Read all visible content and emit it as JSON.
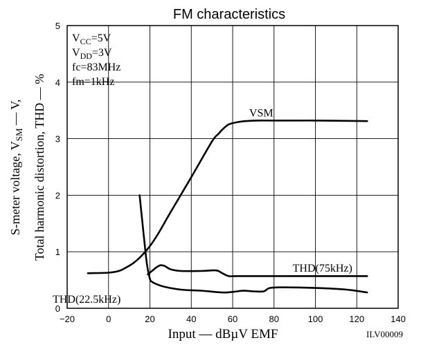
{
  "chart_data": {
    "type": "line",
    "title": "FM characteristics",
    "xlabel": "Input — dBµV EMF",
    "ylabel_line1": "Total harmonic distortion, THD — %",
    "ylabel_line2": [
      "S-meter voltage, V",
      "SM",
      " — V,"
    ],
    "xlim": [
      -20,
      140
    ],
    "ylim": [
      0,
      5
    ],
    "xticks": [
      -20,
      0,
      20,
      40,
      60,
      80,
      100,
      120,
      140
    ],
    "yticks": [
      0,
      1,
      2,
      3,
      4,
      5
    ],
    "grid": true,
    "conditions": [
      {
        "main": "V",
        "sub": "CC",
        "rest": "=5V"
      },
      {
        "main": "V",
        "sub": "DD",
        "rest": "=3V"
      },
      {
        "main": "fc=83MHz",
        "sub": "",
        "rest": ""
      },
      {
        "main": "fm=1kHz",
        "sub": "",
        "rest": ""
      }
    ],
    "code": "ILV00009",
    "series": [
      {
        "name": "VSM",
        "label_at": [
          68,
          3.39
        ],
        "x": [
          -10,
          0,
          5,
          8,
          12,
          16,
          20,
          24,
          30,
          40,
          50,
          53,
          55,
          58,
          62,
          66,
          72,
          80,
          100,
          125
        ],
        "y": [
          0.62,
          0.63,
          0.66,
          0.71,
          0.8,
          0.93,
          1.1,
          1.32,
          1.7,
          2.32,
          2.95,
          3.08,
          3.16,
          3.25,
          3.29,
          3.31,
          3.32,
          3.32,
          3.32,
          3.31
        ]
      },
      {
        "name": "THD(75kHz)",
        "label_at": [
          89,
          0.65
        ],
        "x": [
          19,
          21,
          23,
          25,
          27,
          30,
          35,
          45,
          52,
          55,
          58,
          62,
          70,
          80,
          100,
          125
        ],
        "y": [
          0.6,
          0.66,
          0.72,
          0.76,
          0.75,
          0.69,
          0.66,
          0.66,
          0.67,
          0.62,
          0.57,
          0.57,
          0.57,
          0.57,
          0.57,
          0.57
        ]
      },
      {
        "name": "THD(22.5kHz)",
        "label_at": [
          -27,
          0.1
        ],
        "x": [
          15,
          17,
          18.5,
          20,
          21,
          23,
          27,
          35,
          45,
          55,
          60,
          65,
          70,
          75,
          78,
          85,
          100,
          115,
          125
        ],
        "y": [
          2.0,
          1.3,
          0.8,
          0.52,
          0.47,
          0.43,
          0.38,
          0.33,
          0.31,
          0.28,
          0.29,
          0.31,
          0.3,
          0.3,
          0.36,
          0.37,
          0.36,
          0.33,
          0.28
        ]
      }
    ]
  }
}
